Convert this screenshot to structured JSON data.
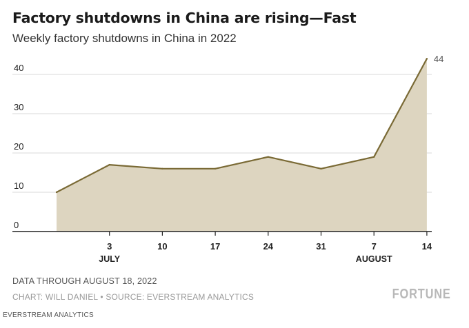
{
  "header": {
    "title": "Factory shutdowns in China are rising—Fast",
    "subtitle": "Weekly factory shutdowns in China in 2022"
  },
  "footer": {
    "note": "DATA THROUGH AUGUST 18, 2022",
    "credit": "CHART: WILL DANIEL • SOURCE: EVERSTREAM ANALYTICS",
    "brand": "FORTUNE",
    "source_tag": "EVERSTREAM ANALYTICS"
  },
  "colors": {
    "line": "#7a6a35",
    "fill": "#ddd5c0",
    "grid": "#d8d8d8",
    "axis": "#222222",
    "text": "#222222"
  },
  "chart_data": {
    "type": "area",
    "title": "Factory shutdowns in China are rising—Fast",
    "subtitle": "Weekly factory shutdowns in China in 2022",
    "xlabel": "",
    "ylabel": "",
    "categories": [
      "",
      "3",
      "10",
      "17",
      "24",
      "31",
      "7",
      "14"
    ],
    "month_labels": [
      {
        "label": "JULY",
        "at_index": 1
      },
      {
        "label": "AUGUST",
        "at_index": 6
      }
    ],
    "series": [
      {
        "name": "Weekly factory shutdowns",
        "values": [
          10,
          17,
          16,
          16,
          19,
          16,
          19,
          44
        ]
      }
    ],
    "last_value_label": "44",
    "yticks": [
      0,
      10,
      20,
      30,
      40
    ],
    "ylim": [
      0,
      44
    ],
    "grid": true
  }
}
